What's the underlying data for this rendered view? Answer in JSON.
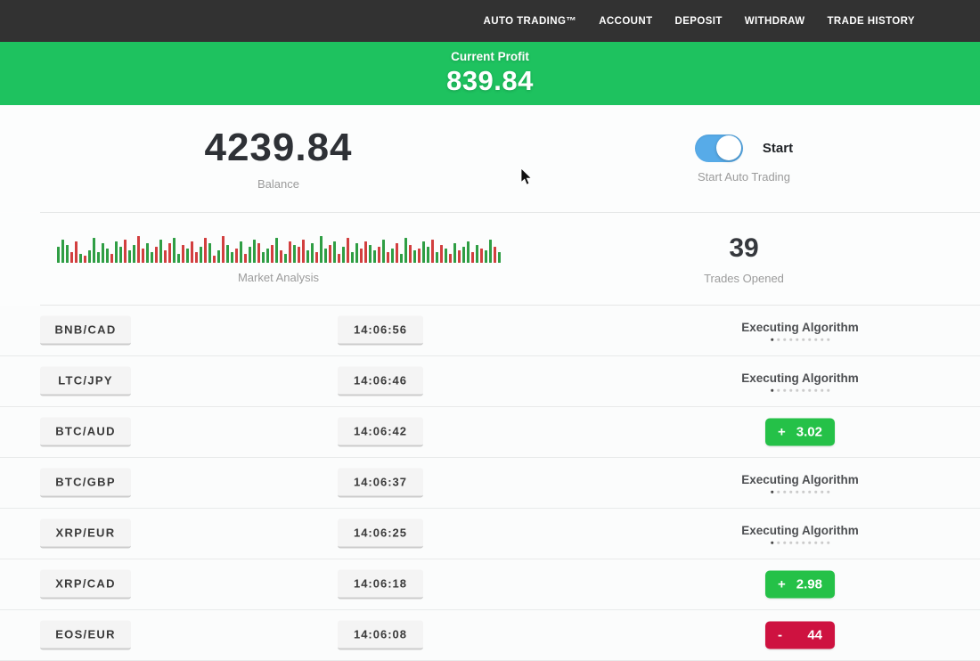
{
  "nav": {
    "items": [
      "AUTO TRADING™",
      "ACCOUNT",
      "DEPOSIT",
      "WITHDRAW",
      "TRADE HISTORY"
    ]
  },
  "profit_banner": {
    "label": "Current Profit",
    "value": "839.84",
    "background_color": "#1ec25f"
  },
  "account": {
    "balance": "4239.84",
    "balance_label": "Balance",
    "toggle_label": "Start",
    "toggle_caption": "Start Auto Trading",
    "toggle_on": true,
    "toggle_color": "#57abe8"
  },
  "market": {
    "label": "Market Analysis",
    "trades_opened": "39",
    "trades_opened_label": "Trades Opened"
  },
  "chart_data": {
    "type": "bar",
    "title": "Market Analysis",
    "description": "mini candlestick-style volume bars, bottom aligned, no axes",
    "colors": {
      "g": "#2f9e44",
      "r": "#d23f3f"
    },
    "bars": [
      [
        18,
        "g"
      ],
      [
        26,
        "g"
      ],
      [
        20,
        "g"
      ],
      [
        12,
        "r"
      ],
      [
        24,
        "r"
      ],
      [
        10,
        "g"
      ],
      [
        8,
        "r"
      ],
      [
        14,
        "g"
      ],
      [
        28,
        "g"
      ],
      [
        12,
        "g"
      ],
      [
        22,
        "g"
      ],
      [
        16,
        "g"
      ],
      [
        10,
        "r"
      ],
      [
        24,
        "g"
      ],
      [
        18,
        "g"
      ],
      [
        26,
        "r"
      ],
      [
        14,
        "g"
      ],
      [
        20,
        "g"
      ],
      [
        30,
        "r"
      ],
      [
        16,
        "r"
      ],
      [
        22,
        "g"
      ],
      [
        12,
        "g"
      ],
      [
        18,
        "r"
      ],
      [
        26,
        "g"
      ],
      [
        14,
        "r"
      ],
      [
        22,
        "r"
      ],
      [
        28,
        "g"
      ],
      [
        10,
        "g"
      ],
      [
        20,
        "r"
      ],
      [
        16,
        "g"
      ],
      [
        24,
        "r"
      ],
      [
        12,
        "r"
      ],
      [
        18,
        "g"
      ],
      [
        28,
        "r"
      ],
      [
        22,
        "g"
      ],
      [
        8,
        "r"
      ],
      [
        14,
        "g"
      ],
      [
        30,
        "r"
      ],
      [
        20,
        "g"
      ],
      [
        12,
        "g"
      ],
      [
        16,
        "r"
      ],
      [
        24,
        "g"
      ],
      [
        10,
        "r"
      ],
      [
        18,
        "g"
      ],
      [
        26,
        "g"
      ],
      [
        22,
        "r"
      ],
      [
        12,
        "g"
      ],
      [
        16,
        "g"
      ],
      [
        20,
        "r"
      ],
      [
        28,
        "g"
      ],
      [
        14,
        "r"
      ],
      [
        10,
        "g"
      ],
      [
        24,
        "r"
      ],
      [
        20,
        "g"
      ],
      [
        18,
        "r"
      ],
      [
        26,
        "r"
      ],
      [
        14,
        "g"
      ],
      [
        22,
        "g"
      ],
      [
        12,
        "r"
      ],
      [
        30,
        "g"
      ],
      [
        16,
        "g"
      ],
      [
        20,
        "r"
      ],
      [
        24,
        "g"
      ],
      [
        10,
        "r"
      ],
      [
        18,
        "g"
      ],
      [
        28,
        "r"
      ],
      [
        12,
        "g"
      ],
      [
        22,
        "g"
      ],
      [
        16,
        "r"
      ],
      [
        24,
        "r"
      ],
      [
        20,
        "g"
      ],
      [
        14,
        "g"
      ],
      [
        18,
        "r"
      ],
      [
        26,
        "g"
      ],
      [
        12,
        "r"
      ],
      [
        16,
        "g"
      ],
      [
        22,
        "r"
      ],
      [
        10,
        "g"
      ],
      [
        28,
        "g"
      ],
      [
        20,
        "r"
      ],
      [
        14,
        "g"
      ],
      [
        16,
        "r"
      ],
      [
        24,
        "g"
      ],
      [
        18,
        "g"
      ],
      [
        26,
        "r"
      ],
      [
        12,
        "g"
      ],
      [
        20,
        "r"
      ],
      [
        16,
        "g"
      ],
      [
        10,
        "r"
      ],
      [
        22,
        "g"
      ],
      [
        14,
        "r"
      ],
      [
        18,
        "g"
      ],
      [
        24,
        "g"
      ],
      [
        12,
        "r"
      ],
      [
        20,
        "g"
      ],
      [
        16,
        "r"
      ],
      [
        14,
        "g"
      ],
      [
        26,
        "g"
      ],
      [
        18,
        "r"
      ],
      [
        12,
        "g"
      ]
    ]
  },
  "trades_list": {
    "executing_label": "Executing Algorithm",
    "dot_count": 10,
    "rows": [
      {
        "pair": "BNB/CAD",
        "time": "14:06:56",
        "status": "executing",
        "sign": "",
        "value": ""
      },
      {
        "pair": "LTC/JPY",
        "time": "14:06:46",
        "status": "executing",
        "sign": "",
        "value": ""
      },
      {
        "pair": "BTC/AUD",
        "time": "14:06:42",
        "status": "result",
        "sign": "+",
        "value": "3.02",
        "result_color": "green"
      },
      {
        "pair": "BTC/GBP",
        "time": "14:06:37",
        "status": "executing",
        "sign": "",
        "value": ""
      },
      {
        "pair": "XRP/EUR",
        "time": "14:06:25",
        "status": "executing",
        "sign": "",
        "value": ""
      },
      {
        "pair": "XRP/CAD",
        "time": "14:06:18",
        "status": "result",
        "sign": "+",
        "value": "2.98",
        "result_color": "green"
      },
      {
        "pair": "EOS/EUR",
        "time": "14:06:08",
        "status": "result",
        "sign": "-",
        "value": "44",
        "result_color": "red"
      }
    ]
  },
  "status_colors": {
    "profit_green": "#25c148",
    "loss_red": "#ce1240"
  }
}
